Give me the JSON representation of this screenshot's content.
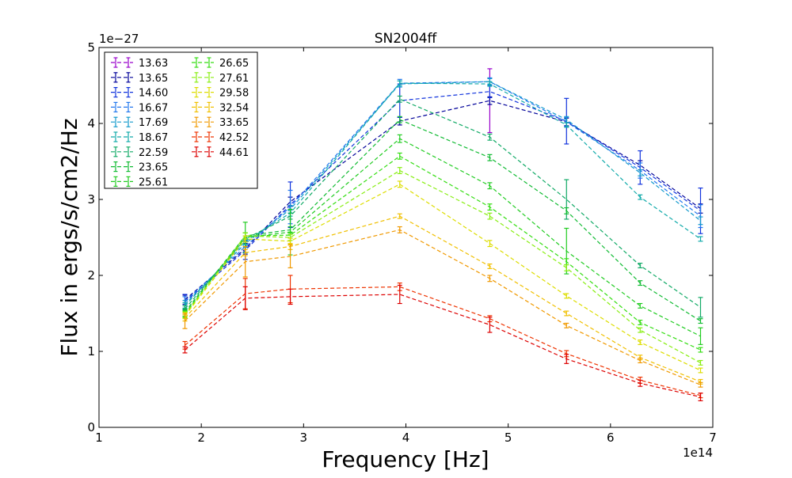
{
  "chart_data": {
    "type": "line",
    "title": "SN2004ff",
    "xlabel": "Frequency [Hz]",
    "ylabel": "Flux in ergs/s/cm2/Hz",
    "x_offset_label": "1e14",
    "y_offset_label": "1e−27",
    "xlim": [
      1,
      7
    ],
    "ylim": [
      0,
      5
    ],
    "x_ticks": [
      "1",
      "2",
      "3",
      "4",
      "5",
      "6",
      "7"
    ],
    "y_ticks": [
      "0",
      "1",
      "2",
      "3",
      "4",
      "5"
    ],
    "grid": false,
    "legend_position": "top-left",
    "x": [
      1.84,
      2.43,
      2.87,
      3.94,
      4.82,
      5.57,
      6.29,
      6.88
    ],
    "series": [
      {
        "name": "13.63",
        "color": "#9900cc",
        "values": [
          null,
          null,
          null,
          null,
          4.3,
          null,
          null,
          null
        ],
        "errors": [
          null,
          null,
          null,
          null,
          0.42,
          null,
          null,
          null
        ]
      },
      {
        "name": "13.65",
        "color": "#000099",
        "values": [
          1.68,
          2.35,
          2.97,
          4.03,
          4.3,
          4.02,
          3.45,
          2.88
        ],
        "errors": [
          0.06,
          0.07,
          0.06,
          0.05,
          0.05,
          0.05,
          0.06,
          0.06
        ]
      },
      {
        "name": "14.60",
        "color": "#1133dd",
        "values": [
          1.65,
          2.33,
          2.93,
          4.3,
          4.42,
          4.03,
          3.42,
          2.85
        ],
        "errors": [
          0.1,
          0.12,
          0.3,
          0.22,
          0.08,
          0.3,
          0.22,
          0.3
        ]
      },
      {
        "name": "16.67",
        "color": "#2277ee",
        "values": [
          1.66,
          2.38,
          2.9,
          4.53,
          4.55,
          4.02,
          3.38,
          2.78
        ],
        "errors": [
          0.06,
          0.08,
          0.22,
          0.05,
          0.05,
          0.06,
          0.1,
          0.15
        ]
      },
      {
        "name": "17.69",
        "color": "#1199cc",
        "values": [
          1.62,
          2.42,
          2.87,
          4.52,
          4.55,
          4.05,
          3.35,
          2.72
        ],
        "errors": [
          0.05,
          0.05,
          0.05,
          0.04,
          0.04,
          0.04,
          0.04,
          0.05
        ]
      },
      {
        "name": "18.67",
        "color": "#11aaaa",
        "values": [
          1.6,
          2.45,
          2.82,
          4.53,
          4.52,
          3.98,
          3.03,
          2.48
        ],
        "errors": [
          0.04,
          0.04,
          0.04,
          0.03,
          0.03,
          0.03,
          0.03,
          0.03
        ]
      },
      {
        "name": "22.59",
        "color": "#11aa66",
        "values": [
          1.56,
          2.48,
          2.78,
          4.32,
          3.82,
          3.0,
          2.13,
          1.58
        ],
        "errors": [
          0.04,
          0.04,
          0.04,
          0.04,
          0.04,
          0.26,
          0.03,
          0.13
        ]
      },
      {
        "name": "23.65",
        "color": "#11bb33",
        "values": [
          1.52,
          2.52,
          2.6,
          4.05,
          3.55,
          2.85,
          1.9,
          1.4
        ],
        "errors": [
          0.04,
          0.04,
          0.04,
          0.04,
          0.04,
          0.04,
          0.03,
          0.03
        ]
      },
      {
        "name": "25.61",
        "color": "#22cc22",
        "values": [
          1.5,
          2.5,
          2.57,
          3.8,
          3.18,
          2.32,
          1.6,
          1.2
        ],
        "errors": [
          0.04,
          0.2,
          0.3,
          0.05,
          0.04,
          0.3,
          0.03,
          0.11
        ]
      },
      {
        "name": "26.65",
        "color": "#33dd11",
        "values": [
          1.49,
          2.52,
          2.53,
          3.57,
          2.9,
          2.18,
          1.38,
          1.02
        ],
        "errors": [
          0.04,
          0.04,
          0.04,
          0.04,
          0.04,
          0.04,
          0.03,
          0.03
        ]
      },
      {
        "name": "27.61",
        "color": "#88ee11",
        "values": [
          1.48,
          2.52,
          2.5,
          3.38,
          2.78,
          2.1,
          1.28,
          0.85
        ],
        "errors": [
          0.04,
          0.04,
          0.04,
          0.04,
          0.04,
          0.04,
          0.03,
          0.03
        ]
      },
      {
        "name": "29.58",
        "color": "#dddd00",
        "values": [
          1.47,
          2.48,
          2.45,
          3.2,
          2.42,
          1.73,
          1.12,
          0.75
        ],
        "errors": [
          0.04,
          0.04,
          0.04,
          0.04,
          0.04,
          0.03,
          0.03,
          0.03
        ]
      },
      {
        "name": "32.54",
        "color": "#f0c000",
        "values": [
          1.44,
          2.3,
          2.38,
          2.78,
          2.12,
          1.5,
          0.92,
          0.6
        ],
        "errors": [
          0.04,
          0.04,
          0.04,
          0.03,
          0.03,
          0.03,
          0.03,
          0.03
        ]
      },
      {
        "name": "33.65",
        "color": "#f09900",
        "values": [
          1.4,
          2.18,
          2.25,
          2.6,
          1.96,
          1.34,
          0.88,
          0.56
        ],
        "errors": [
          0.1,
          0.2,
          0.15,
          0.04,
          0.04,
          0.03,
          0.03,
          0.03
        ]
      },
      {
        "name": "42.52",
        "color": "#ee3300",
        "values": [
          1.08,
          1.76,
          1.82,
          1.85,
          1.43,
          0.97,
          0.62,
          0.42
        ],
        "errors": [
          0.05,
          0.2,
          0.18,
          0.05,
          0.04,
          0.04,
          0.04,
          0.03
        ]
      },
      {
        "name": "44.61",
        "color": "#dd0000",
        "values": [
          1.02,
          1.7,
          1.72,
          1.75,
          1.35,
          0.9,
          0.58,
          0.4
        ],
        "errors": [
          0.04,
          0.15,
          0.1,
          0.12,
          0.1,
          0.06,
          0.04,
          0.05
        ]
      }
    ]
  }
}
